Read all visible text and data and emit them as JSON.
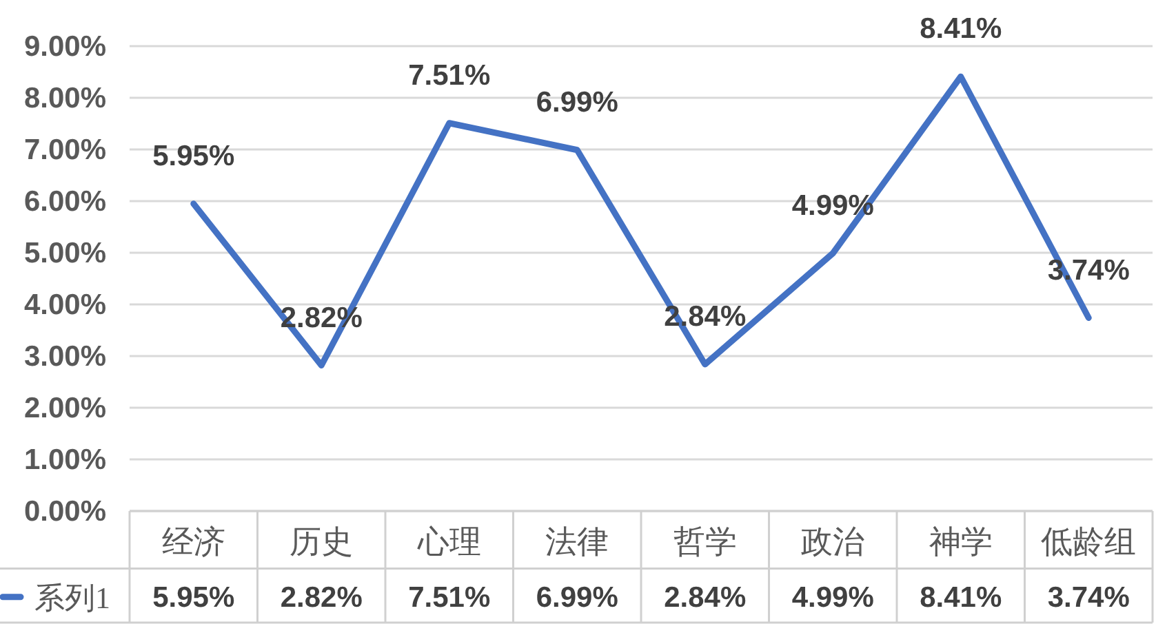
{
  "chart_data": {
    "type": "line",
    "categories": [
      "经济",
      "历史",
      "心理",
      "法律",
      "哲学",
      "政治",
      "神学",
      "低龄组"
    ],
    "series": [
      {
        "name": "系列1",
        "color": "#4472c4",
        "values": [
          5.95,
          2.82,
          7.51,
          6.99,
          2.84,
          4.99,
          8.41,
          3.74
        ],
        "value_labels": [
          "5.95%",
          "2.82%",
          "7.51%",
          "6.99%",
          "2.84%",
          "4.99%",
          "8.41%",
          "3.74%"
        ]
      }
    ],
    "ylim": [
      0,
      9
    ],
    "yticks": [
      {
        "value": 0,
        "label": "0.00%"
      },
      {
        "value": 1,
        "label": "1.00%"
      },
      {
        "value": 2,
        "label": "2.00%"
      },
      {
        "value": 3,
        "label": "3.00%"
      },
      {
        "value": 4,
        "label": "4.00%"
      },
      {
        "value": 5,
        "label": "5.00%"
      },
      {
        "value": 6,
        "label": "6.00%"
      },
      {
        "value": 7,
        "label": "7.00%"
      },
      {
        "value": 8,
        "label": "8.00%"
      },
      {
        "value": 9,
        "label": "9.00%"
      }
    ],
    "grid": "y",
    "legend": "bottom left",
    "line_style": "solid"
  }
}
